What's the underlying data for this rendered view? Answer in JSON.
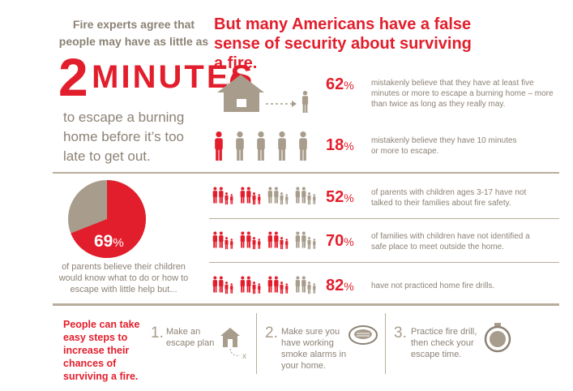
{
  "intro": {
    "lead": "Fire experts agree that people may have as little as",
    "big_number": "2",
    "big_word": "MINUTES",
    "tail": "to escape a burning home before it’s too late to get out."
  },
  "headline": "But many Americans have a false sense of security about surviving a fire.",
  "stats": [
    {
      "value": 62,
      "unit": "%",
      "text": "mistakenly believe that they have at least five minutes or more to escape a burning home – more than twice as long as they really may."
    },
    {
      "value": 18,
      "unit": "%",
      "text": "mistakenly believe they have 10 minutes or more to escape."
    },
    {
      "value": 52,
      "unit": "%",
      "text": "of parents with children ages 3-17 have not talked to their families about fire safety."
    },
    {
      "value": 70,
      "unit": "%",
      "text": "of families with children have not identified a safe place to meet outside the home."
    },
    {
      "value": 82,
      "unit": "%",
      "text": "have not practiced home fire drills."
    }
  ],
  "pie": {
    "value": 69,
    "unit": "%",
    "caption": "of parents believe their children would know what to do or how to escape with little help but..."
  },
  "steps": {
    "intro": "People can take easy steps to increase their chances of surviving a fire.",
    "items": [
      {
        "number": "1.",
        "text": "Make an escape plan"
      },
      {
        "number": "2.",
        "text": "Make sure you have working smoke alarms in your home."
      },
      {
        "number": "3.",
        "text": "Practice fire drill, then check your escape time."
      }
    ]
  }
}
